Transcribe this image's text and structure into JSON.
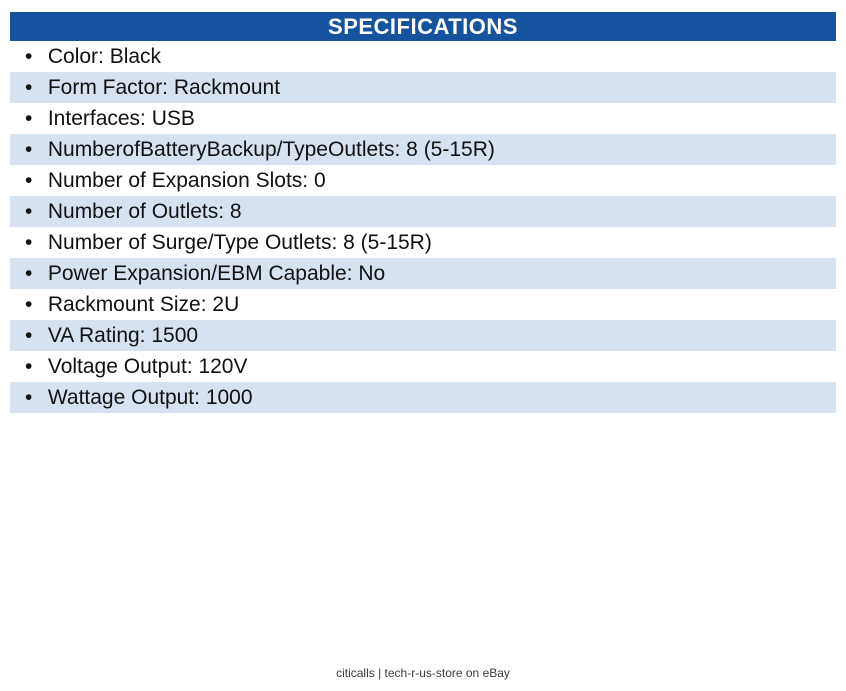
{
  "header": {
    "title": "SPECIFICATIONS"
  },
  "specs": {
    "items": [
      {
        "text": "Color: Black"
      },
      {
        "text": "Form Factor: Rackmount"
      },
      {
        "text": "Interfaces: USB"
      },
      {
        "text": "NumberofBatteryBackup/TypeOutlets: 8 (5-15R)"
      },
      {
        "text": "Number of Expansion Slots: 0"
      },
      {
        "text": "Number of Outlets: 8"
      },
      {
        "text": "Number of Surge/Type Outlets: 8 (5-15R)"
      },
      {
        "text": "Power Expansion/EBM Capable: No"
      },
      {
        "text": "Rackmount Size: 2U"
      },
      {
        "text": "VA Rating: 1500"
      },
      {
        "text": "Voltage Output: 120V"
      },
      {
        "text": "Wattage Output: 1000"
      }
    ],
    "bullet_glyph": "•"
  },
  "footer": {
    "text": "citicalls | tech-r-us-store on eBay"
  },
  "colors": {
    "header_bg": "#15539e",
    "header_text": "#ffffff",
    "row_alt_bg": "#d7e2f1",
    "body_text": "#111111",
    "footer_text": "#3c3c3c"
  }
}
